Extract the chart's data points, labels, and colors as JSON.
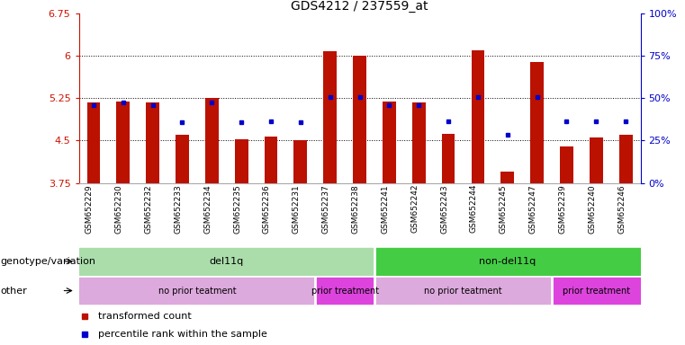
{
  "title": "GDS4212 / 237559_at",
  "samples": [
    "GSM652229",
    "GSM652230",
    "GSM652232",
    "GSM652233",
    "GSM652234",
    "GSM652235",
    "GSM652236",
    "GSM652231",
    "GSM652237",
    "GSM652238",
    "GSM652241",
    "GSM652242",
    "GSM652243",
    "GSM652244",
    "GSM652245",
    "GSM652247",
    "GSM652239",
    "GSM652240",
    "GSM652246"
  ],
  "red_values": [
    5.18,
    5.2,
    5.18,
    4.6,
    5.25,
    4.52,
    4.57,
    4.5,
    6.08,
    6.0,
    5.2,
    5.18,
    4.62,
    6.1,
    3.95,
    5.9,
    4.4,
    4.55,
    4.6
  ],
  "blue_values": [
    5.13,
    5.17,
    5.13,
    4.82,
    5.17,
    4.82,
    4.85,
    4.82,
    5.27,
    5.27,
    5.13,
    5.13,
    4.85,
    5.27,
    4.6,
    5.27,
    4.85,
    4.85,
    4.85
  ],
  "ylim_left": [
    3.75,
    6.75
  ],
  "ylim_right": [
    0,
    100
  ],
  "yticks_left": [
    3.75,
    4.5,
    5.25,
    6.0,
    6.75
  ],
  "yticks_right": [
    0,
    25,
    50,
    75,
    100
  ],
  "ytick_labels_left": [
    "3.75",
    "4.5",
    "5.25",
    "6",
    "6.75"
  ],
  "ytick_labels_right": [
    "0%",
    "25%",
    "50%",
    "75%",
    "100%"
  ],
  "hlines": [
    4.5,
    5.25,
    6.0
  ],
  "bar_color": "#bb1100",
  "dot_color": "#0000cc",
  "bar_bottom": 3.75,
  "genotype_groups": [
    {
      "label": "del11q",
      "start": 0,
      "end": 10,
      "color": "#aaddaa"
    },
    {
      "label": "non-del11q",
      "start": 10,
      "end": 19,
      "color": "#44cc44"
    }
  ],
  "other_groups": [
    {
      "label": "no prior teatment",
      "start": 0,
      "end": 8,
      "color": "#ddaadd"
    },
    {
      "label": "prior treatment",
      "start": 8,
      "end": 10,
      "color": "#dd44dd"
    },
    {
      "label": "no prior teatment",
      "start": 10,
      "end": 16,
      "color": "#ddaadd"
    },
    {
      "label": "prior treatment",
      "start": 16,
      "end": 19,
      "color": "#dd44dd"
    }
  ],
  "legend_items": [
    {
      "label": "transformed count",
      "color": "#bb1100",
      "marker": "s"
    },
    {
      "label": "percentile rank within the sample",
      "color": "#0000cc",
      "marker": "s"
    }
  ],
  "label_genotype": "genotype/variation",
  "label_other": "other",
  "bar_width": 0.45,
  "title_fontsize": 10,
  "axis_fontsize": 8,
  "legend_fontsize": 8,
  "group_fontsize": 8,
  "label_fontsize": 8,
  "xtick_fontsize": 6.5
}
